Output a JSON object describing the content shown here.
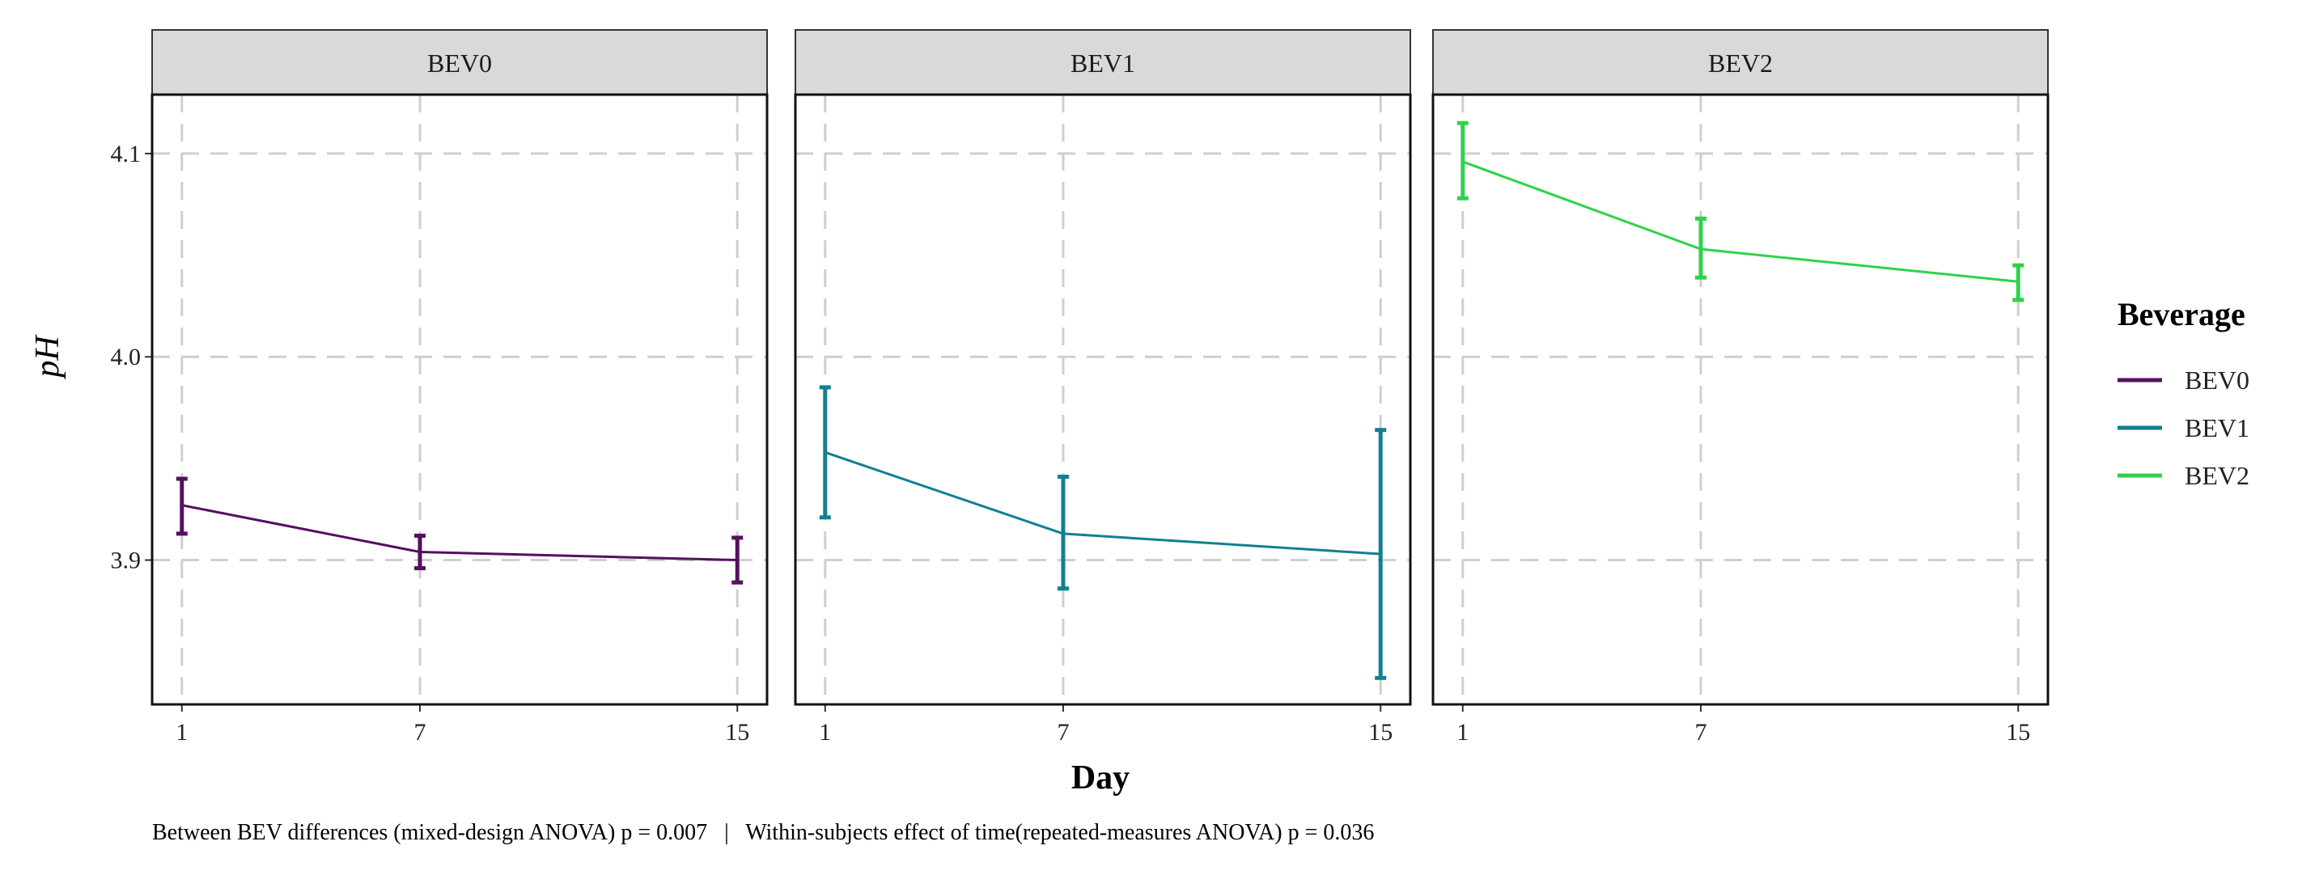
{
  "chart_data": {
    "type": "line",
    "facet_by": "Beverage",
    "xlabel": "Day",
    "ylabel": "pH",
    "x_ticks": [
      1,
      7,
      15
    ],
    "y_ticks": [
      3.9,
      4.0,
      4.1
    ],
    "y_tick_labels": [
      "3.9",
      "4.0",
      "4.1"
    ],
    "x_tick_labels": [
      "1",
      "7",
      "15"
    ],
    "xlim": [
      0.25,
      15.75
    ],
    "ylim": [
      3.829,
      4.129
    ],
    "grid": true,
    "legend": {
      "title": "Beverage",
      "position": "right",
      "entries": [
        "BEV0",
        "BEV1",
        "BEV2"
      ]
    },
    "caption": "Between BEV differences (mixed-design ANOVA) p = 0.007   |   Within-subjects effect of time(repeated-measures ANOVA) p = 0.036",
    "series": [
      {
        "name": "BEV0",
        "color": "#54105e",
        "x": [
          1,
          7,
          15
        ],
        "mean": [
          3.927,
          3.904,
          3.9
        ],
        "lower": [
          3.913,
          3.896,
          3.889
        ],
        "upper": [
          3.94,
          3.912,
          3.911
        ]
      },
      {
        "name": "BEV1",
        "color": "#12808f",
        "x": [
          1,
          7,
          15
        ],
        "mean": [
          3.953,
          3.913,
          3.903
        ],
        "lower": [
          3.921,
          3.886,
          3.842
        ],
        "upper": [
          3.985,
          3.941,
          3.964
        ]
      },
      {
        "name": "BEV2",
        "color": "#2ed24a",
        "x": [
          1,
          7,
          15
        ],
        "mean": [
          4.096,
          4.053,
          4.037
        ],
        "lower": [
          4.078,
          4.039,
          4.028
        ],
        "upper": [
          4.115,
          4.068,
          4.045
        ]
      }
    ]
  }
}
